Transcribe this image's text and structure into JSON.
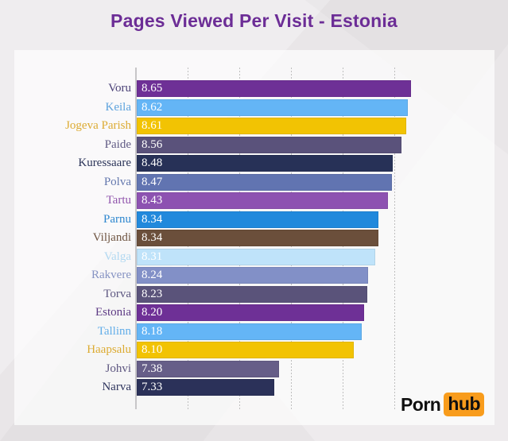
{
  "title": "Pages Viewed Per Visit - Estonia",
  "logo": {
    "part1": "Porn",
    "part2": "hub",
    "badge_color": "#f89c1c",
    "text_color": "#101010"
  },
  "style": {
    "title_color": "#6c2d96",
    "page_background": "#e9e6e8",
    "panel_background": "#fdfdfd",
    "axis_color": "#c7c6c8",
    "grid_color": "#bfbfbf",
    "value_label_color": "#ffffff"
  },
  "chart_data": {
    "type": "bar",
    "orientation": "horizontal",
    "title": "Pages Viewed Per Visit - Estonia",
    "xlabel": "",
    "ylabel": "",
    "xlim": [
      6.0,
      9.0
    ],
    "gridlines_at": [
      6.5,
      7.0,
      7.5,
      8.0,
      8.5
    ],
    "grid": "dashed-vertical",
    "legend": "none",
    "value_labels": "inside-bar-start",
    "categories": [
      "Voru",
      "Keila",
      "Jogeva Parish",
      "Paide",
      "Kuressaare",
      "Polva",
      "Tartu",
      "Parnu",
      "Viljandi",
      "Valga",
      "Rakvere",
      "Torva",
      "Estonia",
      "Tallinn",
      "Haapsalu",
      "Johvi",
      "Narva"
    ],
    "values": [
      8.65,
      8.62,
      8.61,
      8.56,
      8.48,
      8.47,
      8.43,
      8.34,
      8.34,
      8.31,
      8.24,
      8.23,
      8.2,
      8.18,
      8.1,
      7.38,
      7.33
    ],
    "bar_colors": [
      "#6e3096",
      "#64b5f6",
      "#f2c303",
      "#5a527b",
      "#273157",
      "#6174b1",
      "#8d52b1",
      "#2189dc",
      "#6b4f3b",
      "#bfe3fa",
      "#8290c7",
      "#5a537a",
      "#6e3096",
      "#64b5f6",
      "#f2c303",
      "#665e88",
      "#2b3159"
    ],
    "label_colors": [
      "#4a4177",
      "#5ea3dd",
      "#dcab32",
      "#605a84",
      "#2b3459",
      "#6478ae",
      "#9156ad",
      "#2e87cf",
      "#6f5542",
      "#b1d8f1",
      "#8693c3",
      "#5d5781",
      "#5d3a84",
      "#63aee9",
      "#dcab32",
      "#5d5680",
      "#2f355e"
    ]
  }
}
